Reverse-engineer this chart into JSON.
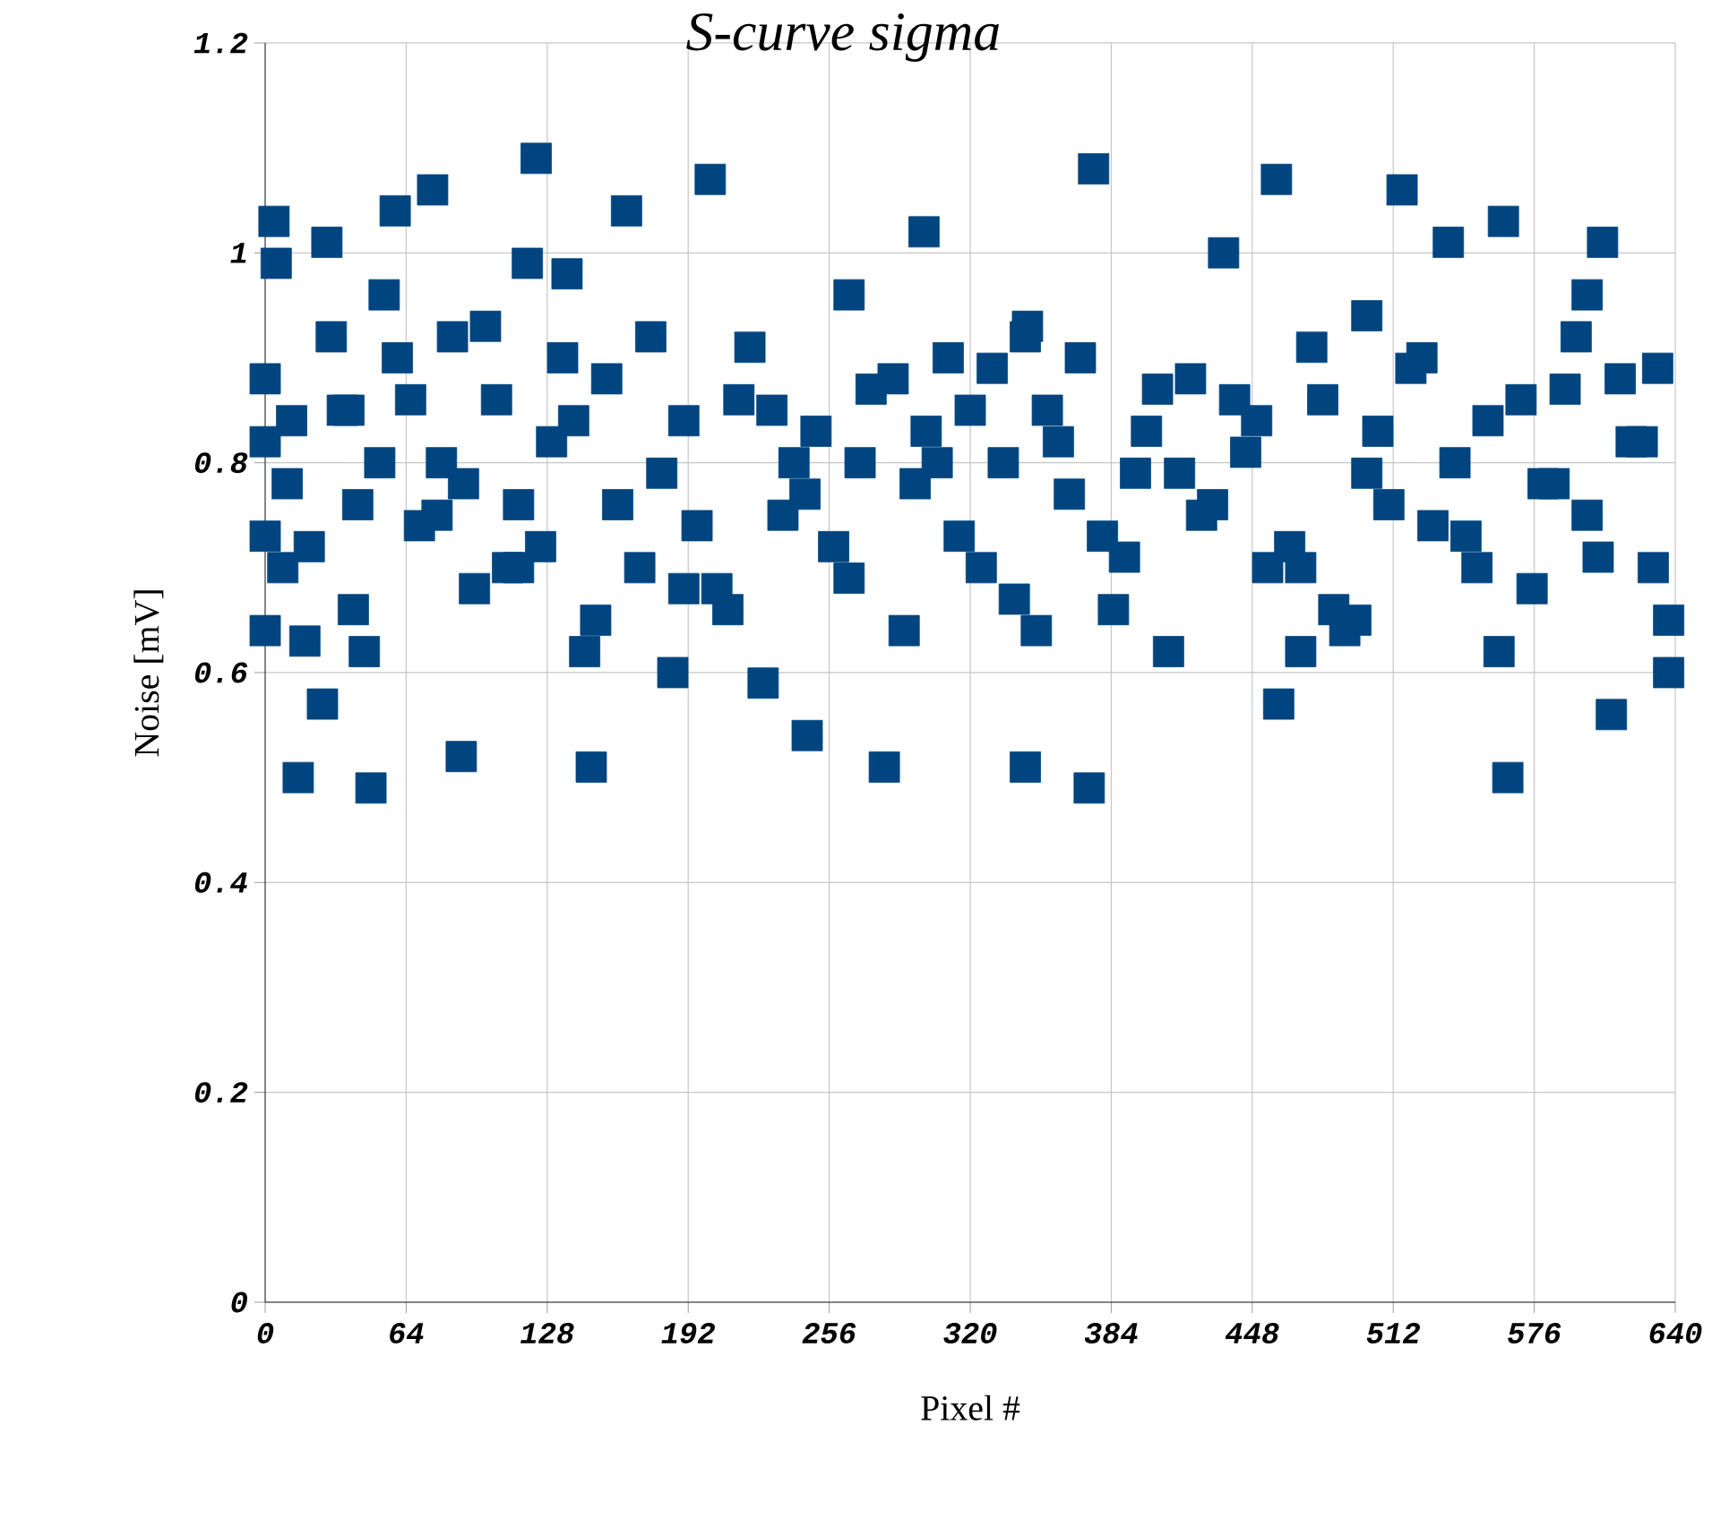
{
  "chart_data": {
    "type": "scatter",
    "title": "S-curve sigma",
    "xlabel": "Pixel #",
    "ylabel": "Noise [mV]",
    "xlim": [
      0,
      640
    ],
    "ylim": [
      0,
      1.2
    ],
    "xticks": [
      0,
      64,
      128,
      192,
      256,
      320,
      384,
      448,
      512,
      576,
      640
    ],
    "yticks": [
      0,
      0.2,
      0.4,
      0.6,
      0.8,
      1,
      1.2
    ],
    "grid": true,
    "marker": "square",
    "series": [
      {
        "color": "#004580",
        "x": [
          0,
          0,
          0,
          0,
          4,
          5,
          15,
          26,
          28,
          48,
          54,
          59,
          76,
          89,
          119,
          123,
          137,
          148,
          164,
          202,
          226,
          246,
          281,
          299,
          345,
          346,
          374,
          376,
          435,
          459,
          460,
          516,
          537,
          562,
          564,
          607,
          611,
          637,
          637,
          10,
          20,
          35,
          40,
          60,
          70,
          80,
          95,
          105,
          115,
          130,
          145,
          155,
          170,
          180,
          190,
          210,
          220,
          235,
          250,
          265,
          275,
          290,
          305,
          315,
          330,
          340,
          355,
          365,
          390,
          400,
          410,
          420,
          430,
          445,
          470,
          480,
          490,
          500,
          525,
          545,
          555,
          575,
          590,
          600,
          620,
          630,
          12,
          45,
          85,
          110,
          160,
          185,
          230,
          270,
          310,
          350,
          395,
          440,
          485,
          530,
          580,
          615,
          8,
          30,
          52,
          66,
          90,
          100,
          125,
          140,
          150,
          175,
          196,
          215,
          240,
          258,
          285,
          295,
          320,
          325,
          360,
          370,
          380,
          405,
          415,
          450,
          465,
          475,
          495,
          505,
          510,
          520,
          540,
          550,
          570,
          585,
          595,
          605,
          625,
          632,
          18,
          38,
          78,
          135,
          205,
          245,
          300,
          335,
          385,
          425,
          455,
          500,
          560,
          600,
          42,
          115,
          190,
          265,
          345,
          470
        ],
        "values": [
          0.64,
          0.82,
          0.88,
          0.73,
          1.03,
          0.99,
          0.5,
          0.57,
          1.01,
          0.49,
          0.96,
          1.04,
          1.06,
          0.52,
          0.99,
          1.09,
          0.98,
          0.51,
          1.04,
          1.07,
          0.59,
          0.54,
          0.51,
          1.02,
          0.51,
          0.93,
          0.49,
          1.08,
          1.0,
          1.07,
          0.57,
          1.06,
          1.01,
          1.03,
          0.5,
          1.01,
          0.56,
          0.6,
          0.65,
          0.78,
          0.72,
          0.85,
          0.66,
          0.9,
          0.74,
          0.8,
          0.68,
          0.86,
          0.76,
          0.82,
          0.62,
          0.88,
          0.7,
          0.79,
          0.84,
          0.66,
          0.91,
          0.75,
          0.83,
          0.69,
          0.87,
          0.64,
          0.8,
          0.73,
          0.89,
          0.67,
          0.85,
          0.77,
          0.71,
          0.83,
          0.62,
          0.88,
          0.76,
          0.81,
          0.7,
          0.86,
          0.64,
          0.79,
          0.9,
          0.73,
          0.84,
          0.68,
          0.87,
          0.75,
          0.82,
          0.7,
          0.84,
          0.62,
          0.92,
          0.7,
          0.76,
          0.6,
          0.85,
          0.8,
          0.9,
          0.64,
          0.79,
          0.86,
          0.66,
          0.74,
          0.78,
          0.88,
          0.7,
          0.92,
          0.8,
          0.86,
          0.78,
          0.93,
          0.72,
          0.84,
          0.65,
          0.92,
          0.74,
          0.86,
          0.8,
          0.72,
          0.88,
          0.78,
          0.85,
          0.7,
          0.82,
          0.9,
          0.73,
          0.87,
          0.79,
          0.84,
          0.72,
          0.91,
          0.65,
          0.83,
          0.76,
          0.89,
          0.8,
          0.7,
          0.86,
          0.78,
          0.92,
          0.71,
          0.82,
          0.89,
          0.63,
          0.85,
          0.75,
          0.9,
          0.68,
          0.77,
          0.83,
          0.8,
          0.66,
          0.75,
          0.7,
          0.94,
          0.62,
          0.96,
          0.76,
          0.7,
          0.68,
          0.96,
          0.92,
          0.62
        ]
      }
    ]
  }
}
